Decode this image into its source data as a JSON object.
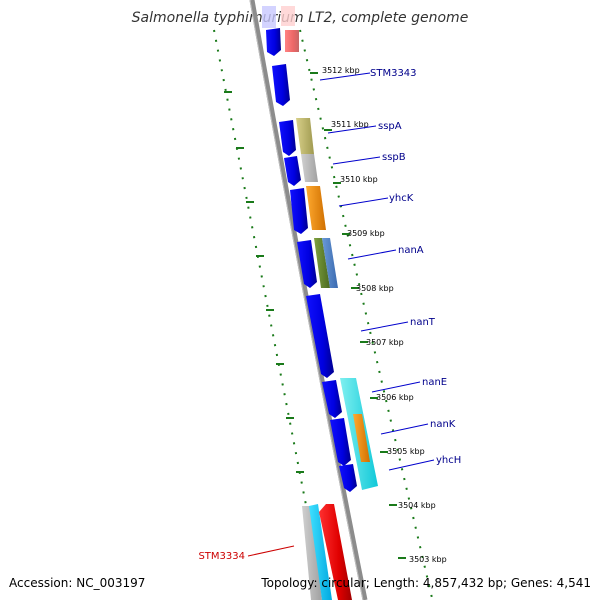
{
  "title": "Salmonella typhimurium LT2, complete genome",
  "footer": {
    "accession": "Accession: NC_003197",
    "topology": "Topology: circular; Length: 4,857,432 bp; Genes: 4,541"
  },
  "kbp_labels": [
    "3512 kbp",
    "3511 kbp",
    "3510 kbp",
    "3509 kbp",
    "3508 kbp",
    "3507 kbp",
    "3506 kbp",
    "3505 kbp",
    "3504 kbp",
    "3503 kbp"
  ],
  "genes": [
    {
      "name": "STM3343",
      "color": "#00008b"
    },
    {
      "name": "sspA",
      "color": "#00008b"
    },
    {
      "name": "sspB",
      "color": "#00008b"
    },
    {
      "name": "yhcK",
      "color": "#00008b"
    },
    {
      "name": "nanA",
      "color": "#00008b"
    },
    {
      "name": "nanT",
      "color": "#00008b"
    },
    {
      "name": "nanE",
      "color": "#00008b"
    },
    {
      "name": "nanK",
      "color": "#00008b"
    },
    {
      "name": "yhcH",
      "color": "#00008b"
    },
    {
      "name": "STM3334",
      "color": "#cc0000"
    }
  ],
  "colors": {
    "backbone": "#8c8c8c",
    "forward_cds": "#0000ee",
    "reverse_cds": "#ff0000",
    "tick_green": "#1a7a1a"
  }
}
